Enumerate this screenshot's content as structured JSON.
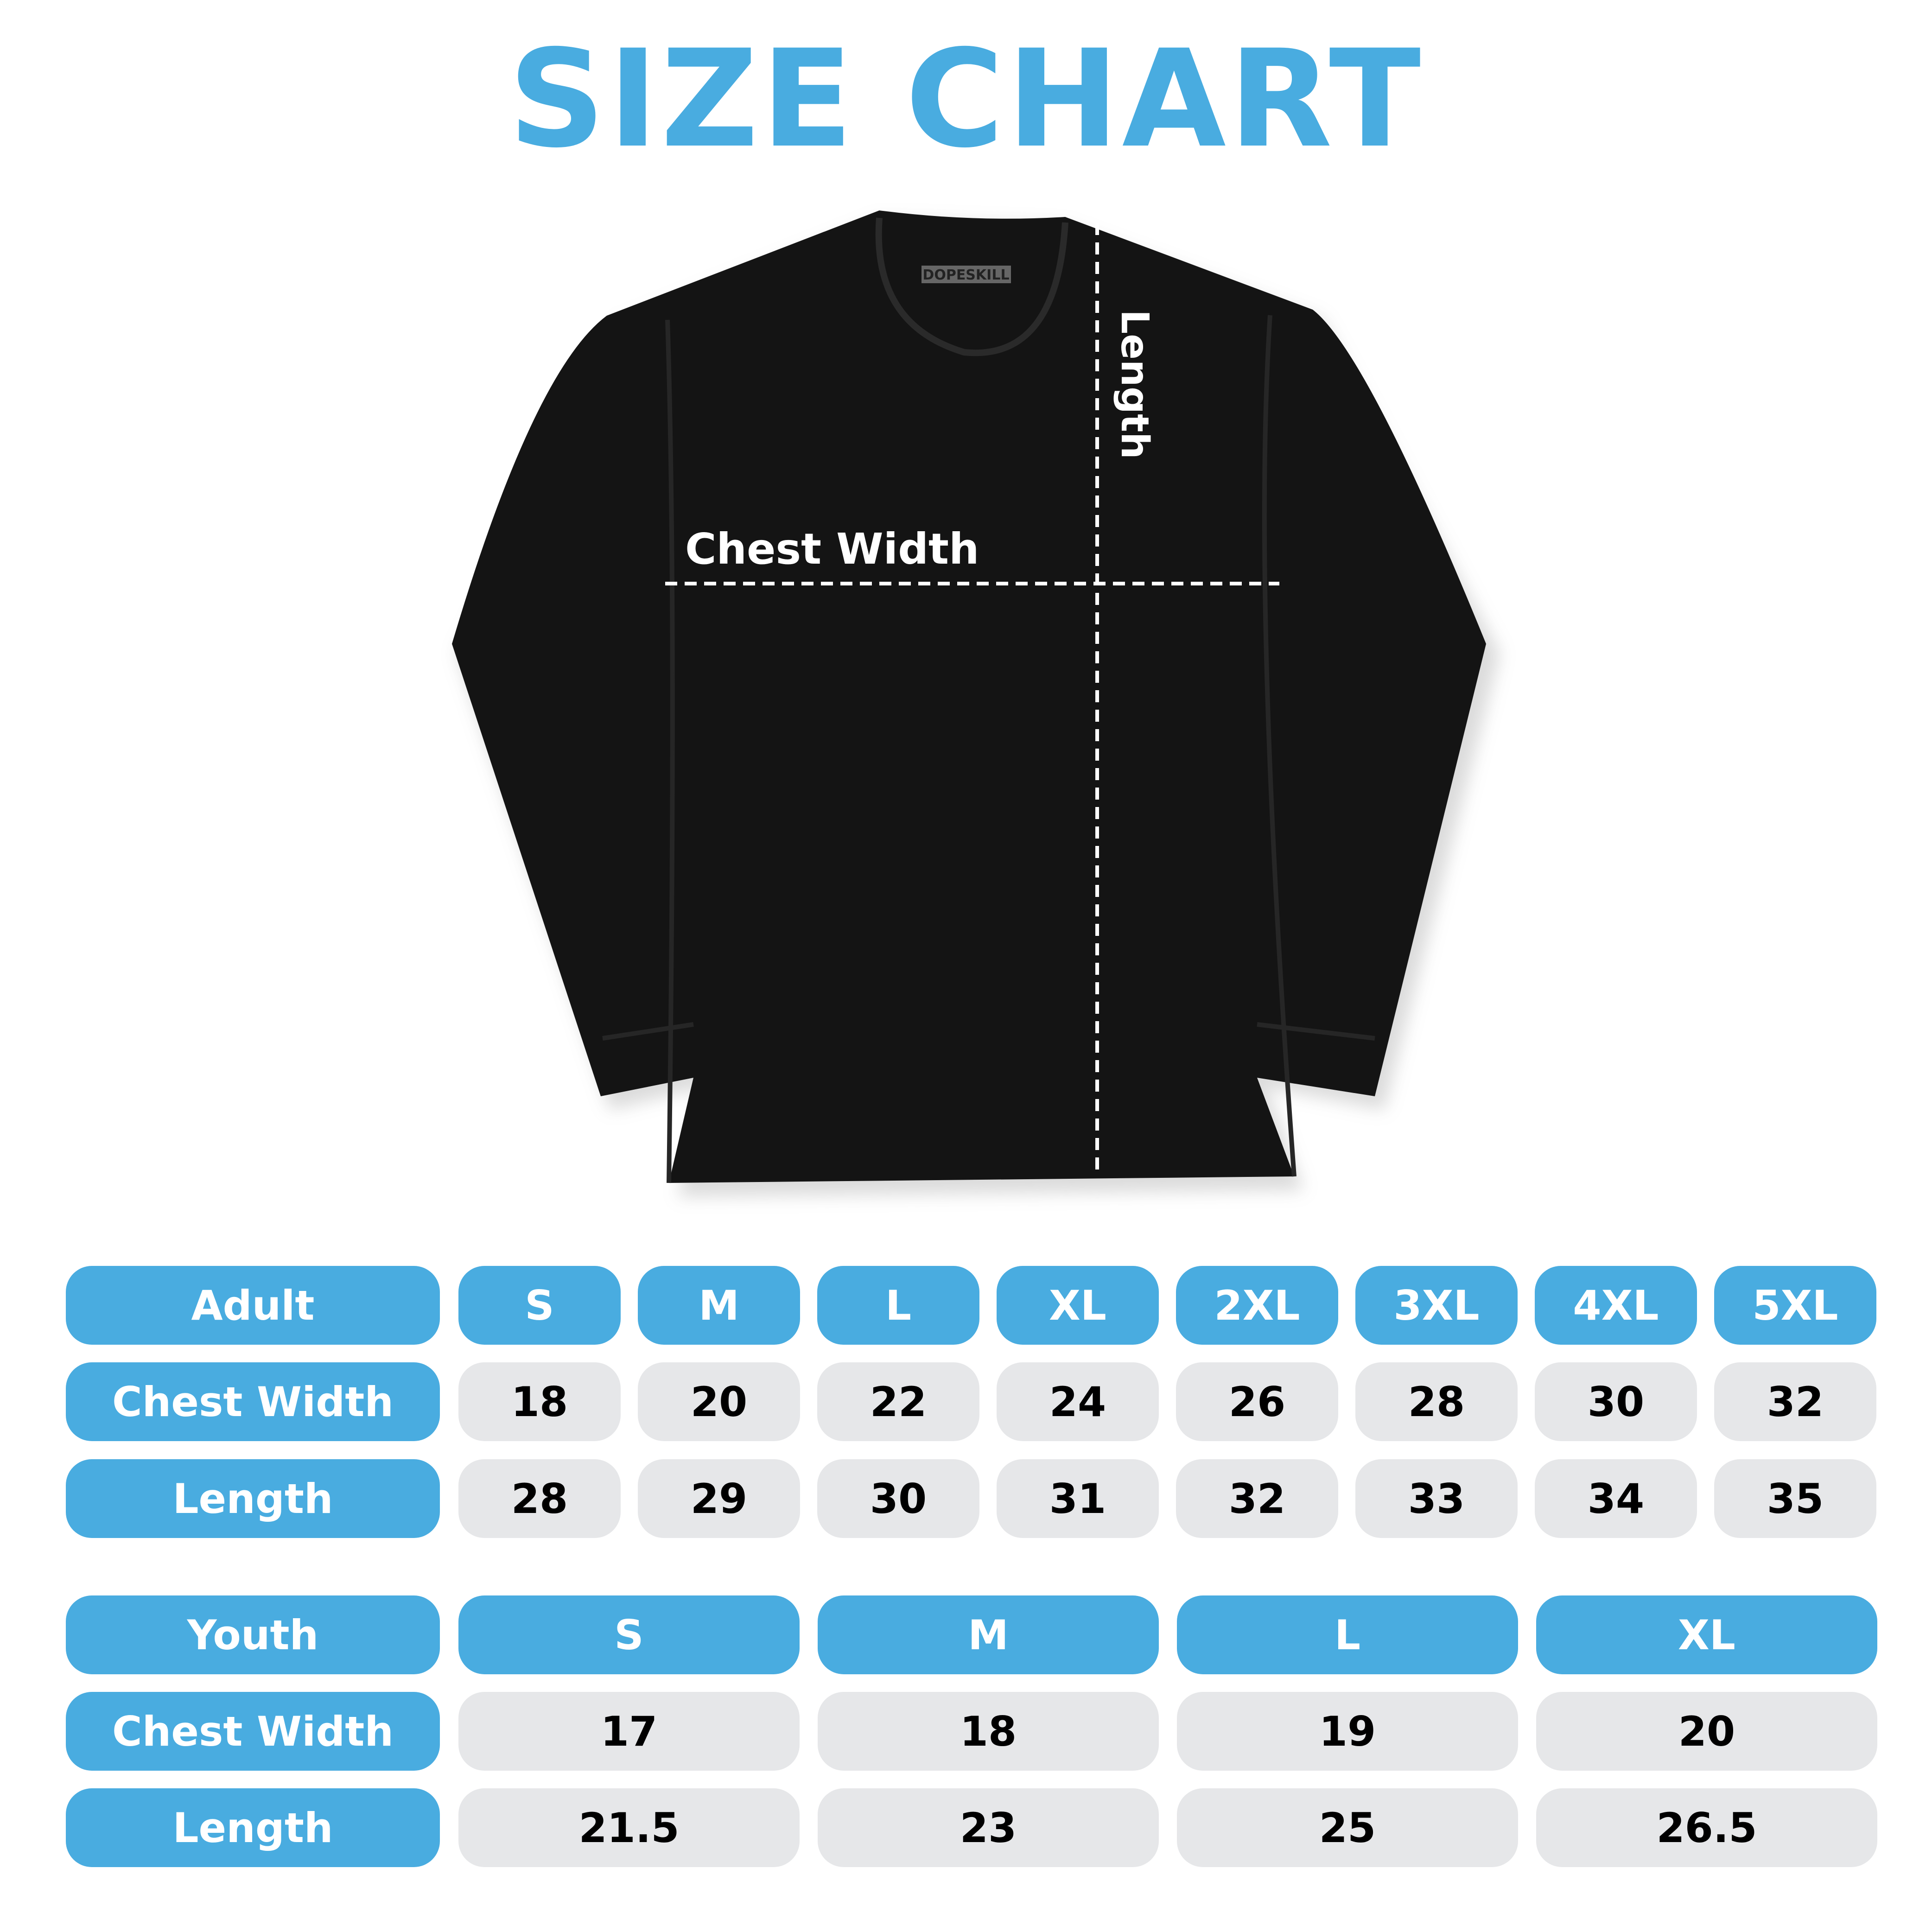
{
  "title": "SIZE CHART",
  "colors": {
    "accent": "#49ACE0",
    "cell_gray": "#E6E7E9",
    "shirt": "#141414"
  },
  "shirt": {
    "brand_tag": "DOPESKILL",
    "chest_label": "Chest Width",
    "length_label": "Length"
  },
  "adult": {
    "header": "Adult",
    "sizes": [
      "S",
      "M",
      "L",
      "XL",
      "2XL",
      "3XL",
      "4XL",
      "5XL"
    ],
    "rows": [
      {
        "label": "Chest Width",
        "values": [
          "18",
          "20",
          "22",
          "24",
          "26",
          "28",
          "30",
          "32"
        ]
      },
      {
        "label": "Length",
        "values": [
          "28",
          "29",
          "30",
          "31",
          "32",
          "33",
          "34",
          "35"
        ]
      }
    ]
  },
  "youth": {
    "header": "Youth",
    "sizes": [
      "S",
      "M",
      "L",
      "XL"
    ],
    "rows": [
      {
        "label": "Chest Width",
        "values": [
          "17",
          "18",
          "19",
          "20"
        ]
      },
      {
        "label": "Length",
        "values": [
          "21.5",
          "23",
          "25",
          "26.5"
        ]
      }
    ]
  }
}
